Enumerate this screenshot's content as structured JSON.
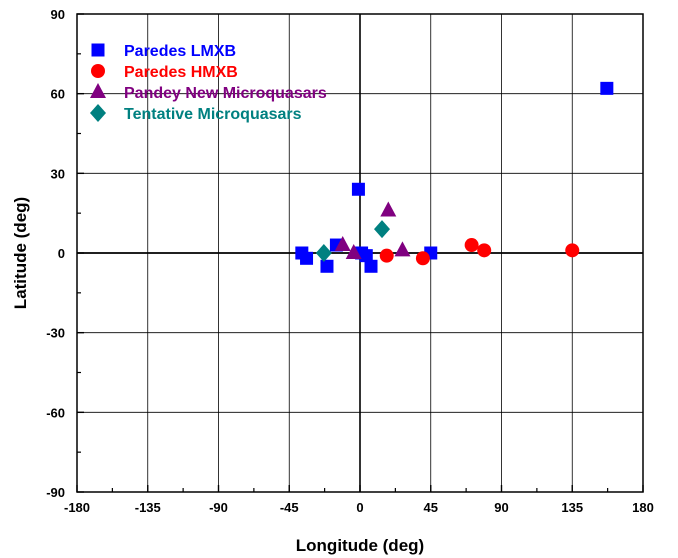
{
  "chart_data": {
    "type": "scatter",
    "xlabel": "Longitude (deg)",
    "ylabel": "Latitude (deg)",
    "xlim": [
      -180,
      180
    ],
    "ylim": [
      -90,
      90
    ],
    "xticks": [
      -180,
      -135,
      -90,
      -45,
      0,
      45,
      90,
      135,
      180
    ],
    "yticks": [
      -90,
      -60,
      -30,
      0,
      30,
      60,
      90
    ],
    "xtick_labels": [
      "-180",
      "-135",
      "-90",
      "-45",
      "0",
      "45",
      "90",
      "135",
      "180"
    ],
    "ytick_labels": [
      "-90",
      "-60",
      "-30",
      "0",
      "30",
      "60",
      "90"
    ],
    "grid": true,
    "legend_position": "top-left",
    "series": [
      {
        "name": "Paredes LMXB",
        "marker": "square",
        "color": "#0000ff",
        "points": [
          {
            "x": -37,
            "y": 0
          },
          {
            "x": -34,
            "y": -2
          },
          {
            "x": -21,
            "y": -5
          },
          {
            "x": -15,
            "y": 3
          },
          {
            "x": -1,
            "y": 24
          },
          {
            "x": 1,
            "y": 0
          },
          {
            "x": 4,
            "y": -1
          },
          {
            "x": 7,
            "y": -5
          },
          {
            "x": 45,
            "y": 0
          },
          {
            "x": 157,
            "y": 62
          }
        ]
      },
      {
        "name": "Paredes HMXB",
        "marker": "circle",
        "color": "#ff0000",
        "points": [
          {
            "x": 17,
            "y": -1
          },
          {
            "x": 40,
            "y": -2
          },
          {
            "x": 71,
            "y": 3
          },
          {
            "x": 79,
            "y": 1
          },
          {
            "x": 135,
            "y": 1
          }
        ]
      },
      {
        "name": "Pandey New Microquasars",
        "marker": "triangle",
        "color": "#800080",
        "points": [
          {
            "x": -11,
            "y": 3
          },
          {
            "x": -4,
            "y": 0
          },
          {
            "x": 18,
            "y": 16
          },
          {
            "x": 27,
            "y": 1
          }
        ]
      },
      {
        "name": "Tentative Microquasars",
        "marker": "diamond",
        "color": "#008080",
        "points": [
          {
            "x": -23,
            "y": 0
          },
          {
            "x": 14,
            "y": 9
          }
        ]
      }
    ]
  }
}
